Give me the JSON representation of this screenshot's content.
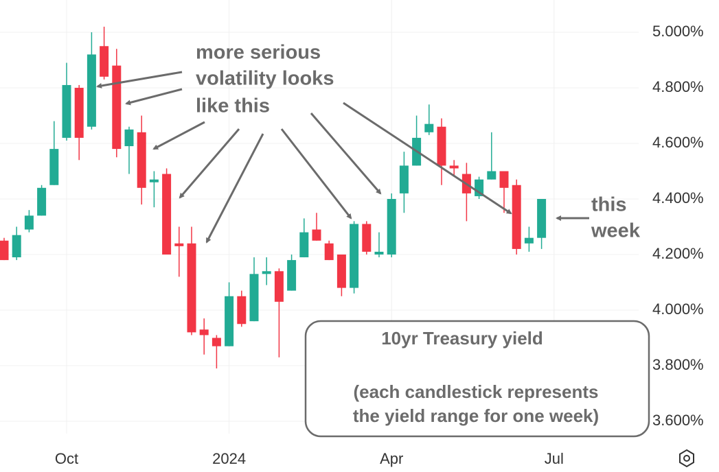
{
  "chart_data": {
    "type": "candlestick",
    "categories": [
      null,
      null,
      null,
      null,
      null,
      "Oct",
      null,
      null,
      null,
      null,
      null,
      null,
      null,
      null,
      null,
      null,
      null,
      null,
      "2024",
      null,
      null,
      null,
      null,
      null,
      null,
      null,
      null,
      null,
      null,
      null,
      null,
      "Apr",
      null,
      null,
      null,
      null,
      null,
      null,
      null,
      null,
      null,
      null,
      null,
      null,
      "Jul",
      null,
      null,
      null,
      null,
      null,
      null
    ],
    "open": [
      4.25,
      4.19,
      4.29,
      4.34,
      4.45,
      4.62,
      4.8,
      4.66,
      4.95,
      4.88,
      4.59,
      4.64,
      4.46,
      4.49,
      4.24,
      4.24,
      3.93,
      3.9,
      3.87,
      4.05,
      3.96,
      4.13,
      4.14,
      4.07,
      4.19,
      4.29,
      4.24,
      4.2,
      4.08,
      4.31,
      4.2,
      4.2,
      4.42,
      4.52,
      4.64,
      4.66,
      4.52,
      4.49,
      4.41,
      4.47,
      4.5,
      4.45,
      4.24,
      4.26,
      null,
      null,
      null,
      null,
      null,
      null,
      null
    ],
    "high": [
      4.26,
      4.3,
      4.36,
      4.45,
      4.68,
      4.89,
      4.81,
      5.0,
      5.02,
      4.94,
      4.66,
      4.7,
      4.5,
      4.51,
      4.3,
      4.3,
      3.97,
      3.91,
      4.1,
      4.07,
      4.19,
      4.19,
      4.15,
      4.2,
      4.33,
      4.35,
      4.25,
      4.2,
      4.32,
      4.32,
      4.28,
      4.42,
      4.57,
      4.7,
      4.74,
      4.69,
      4.54,
      4.53,
      4.48,
      4.64,
      4.5,
      4.47,
      4.3,
      4.4,
      null,
      null,
      null,
      null,
      null,
      null,
      null
    ],
    "low": [
      4.18,
      4.18,
      4.28,
      4.34,
      4.45,
      4.61,
      4.54,
      4.65,
      4.83,
      4.55,
      4.49,
      4.38,
      4.37,
      4.2,
      4.12,
      3.91,
      3.84,
      3.79,
      3.87,
      3.94,
      3.96,
      4.09,
      3.83,
      4.07,
      4.19,
      4.25,
      4.18,
      4.05,
      4.06,
      4.2,
      4.19,
      4.19,
      4.35,
      4.52,
      4.63,
      4.45,
      4.48,
      4.32,
      4.4,
      4.47,
      4.35,
      4.2,
      4.21,
      4.22,
      null,
      null,
      null,
      null,
      null,
      null,
      null
    ],
    "close": [
      4.18,
      4.27,
      4.34,
      4.44,
      4.58,
      4.81,
      4.62,
      4.92,
      4.84,
      4.58,
      4.65,
      4.44,
      4.47,
      4.2,
      4.23,
      3.92,
      3.91,
      3.87,
      4.05,
      3.95,
      4.13,
      4.14,
      4.03,
      4.18,
      4.28,
      4.25,
      4.18,
      4.08,
      4.31,
      4.21,
      4.21,
      4.4,
      4.52,
      4.62,
      4.67,
      4.52,
      4.51,
      4.42,
      4.47,
      4.5,
      4.44,
      4.22,
      4.26,
      4.4,
      null,
      null,
      null,
      null,
      null,
      null,
      null
    ],
    "up_color": "#22ab94",
    "down_color": "#f23645",
    "ylim": [
      3.55,
      5.116
    ],
    "yticks": [
      {
        "value": 3.6,
        "label": "3.600%"
      },
      {
        "value": 3.8,
        "label": "3.800%"
      },
      {
        "value": 4.0,
        "label": "4.000%"
      },
      {
        "value": 4.2,
        "label": "4.200%"
      },
      {
        "value": 4.4,
        "label": "4.400%"
      },
      {
        "value": 4.6,
        "label": "4.600%"
      },
      {
        "value": 4.8,
        "label": "4.800%"
      },
      {
        "value": 5.0,
        "label": "5.000%"
      }
    ],
    "grid": true,
    "annotations": {
      "volatility": [
        "more serious",
        "volatility looks",
        "like this"
      ],
      "this_week": [
        "this",
        "week"
      ],
      "box_title": "10yr Treasury yield",
      "box_note": [
        "(each candlestick represents",
        "the yield range for one week)"
      ]
    }
  }
}
